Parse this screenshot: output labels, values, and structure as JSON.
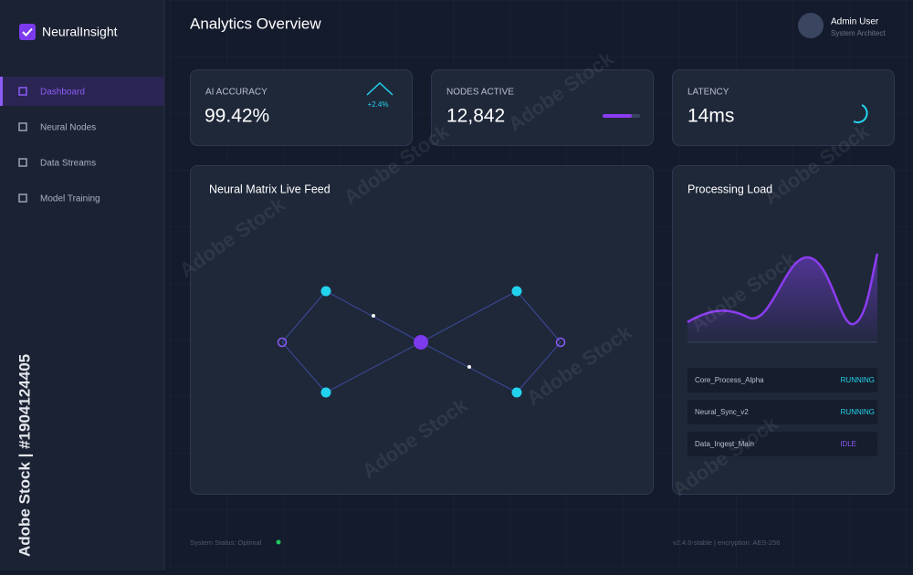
{
  "brand": "NeuralInsight",
  "nav": [
    "Dashboard",
    "Neural Nodes",
    "Data Streams",
    "Model Training"
  ],
  "header": {
    "title": "Analytics Overview",
    "user_name": "Admin User",
    "user_role": "System Architect"
  },
  "stats": [
    {
      "label": "AI ACCURACY",
      "value": "99.42%",
      "delta": "+2.4%"
    },
    {
      "label": "NODES ACTIVE",
      "value": "12,842"
    },
    {
      "label": "LATENCY",
      "value": "14ms"
    }
  ],
  "feed": {
    "title": "Neural Matrix Live Feed"
  },
  "load": {
    "title": "Processing Load",
    "processes": [
      [
        "Core_Process_Alpha",
        "RUNNING"
      ],
      [
        "Neural_Sync_v2",
        "RUNNING"
      ],
      [
        "Data_Ingest_Main",
        "IDLE"
      ]
    ]
  },
  "footer": {
    "status": "System Status: Optimal",
    "version": "v2.4.0-stable | encryption: AES-256"
  },
  "watermark": {
    "text": "Adobe Stock",
    "id": "Adobe Stock | #1904124405"
  }
}
